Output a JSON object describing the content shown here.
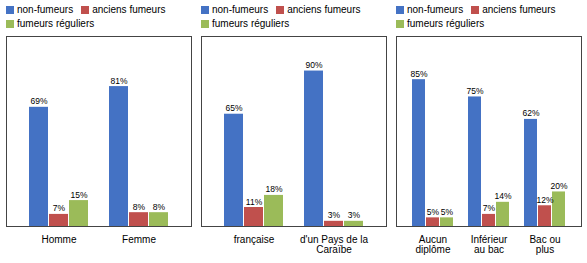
{
  "chart_data": [
    {
      "type": "bar",
      "categories": [
        "Homme",
        "Femme"
      ],
      "series": [
        {
          "name": "non-fumeurs",
          "color": "#4472C4",
          "values": [
            69,
            81
          ],
          "value_labels": [
            "69%",
            "81%"
          ]
        },
        {
          "name": "anciens fumeurs",
          "color": "#C0504D",
          "values": [
            7,
            8
          ],
          "value_labels": [
            "7%",
            "8%"
          ]
        },
        {
          "name": "fumeurs réguliers",
          "color": "#9BBB59",
          "values": [
            15,
            8
          ],
          "value_labels": [
            "15%",
            "8%"
          ]
        }
      ],
      "ylim": [
        0,
        110
      ],
      "data_labels": true,
      "legend": "upper left",
      "tick_labels": "x"
    },
    {
      "type": "bar",
      "categories": [
        "française",
        "d'un Pays de la\nCaraïbe"
      ],
      "series": [
        {
          "name": "non-fumeurs",
          "color": "#4472C4",
          "values": [
            65,
            90
          ],
          "value_labels": [
            "65%",
            "90%"
          ]
        },
        {
          "name": "anciens fumeurs",
          "color": "#C0504D",
          "values": [
            11,
            3
          ],
          "value_labels": [
            "11%",
            "3%"
          ]
        },
        {
          "name": "fumeurs réguliers",
          "color": "#9BBB59",
          "values": [
            18,
            3
          ],
          "value_labels": [
            "18%",
            "3%"
          ]
        }
      ],
      "ylim": [
        0,
        110
      ],
      "data_labels": true,
      "legend": "upper left",
      "tick_labels": "x"
    },
    {
      "type": "bar",
      "categories": [
        "Aucun\ndiplôme",
        "Inférieur\nau bac",
        "Bac ou\nplus"
      ],
      "series": [
        {
          "name": "non-fumeurs",
          "color": "#4472C4",
          "values": [
            85,
            75,
            62
          ],
          "value_labels": [
            "85%",
            "75%",
            "62%"
          ]
        },
        {
          "name": "anciens fumeurs",
          "color": "#C0504D",
          "values": [
            5,
            7,
            12
          ],
          "value_labels": [
            "5%",
            "7%",
            "12%"
          ]
        },
        {
          "name": "fumeurs réguliers",
          "color": "#9BBB59",
          "values": [
            5,
            14,
            20
          ],
          "value_labels": [
            "5%",
            "14%",
            "20%"
          ]
        }
      ],
      "ylim": [
        0,
        110
      ],
      "data_labels": true,
      "legend": "upper left",
      "tick_labels": "x"
    }
  ]
}
